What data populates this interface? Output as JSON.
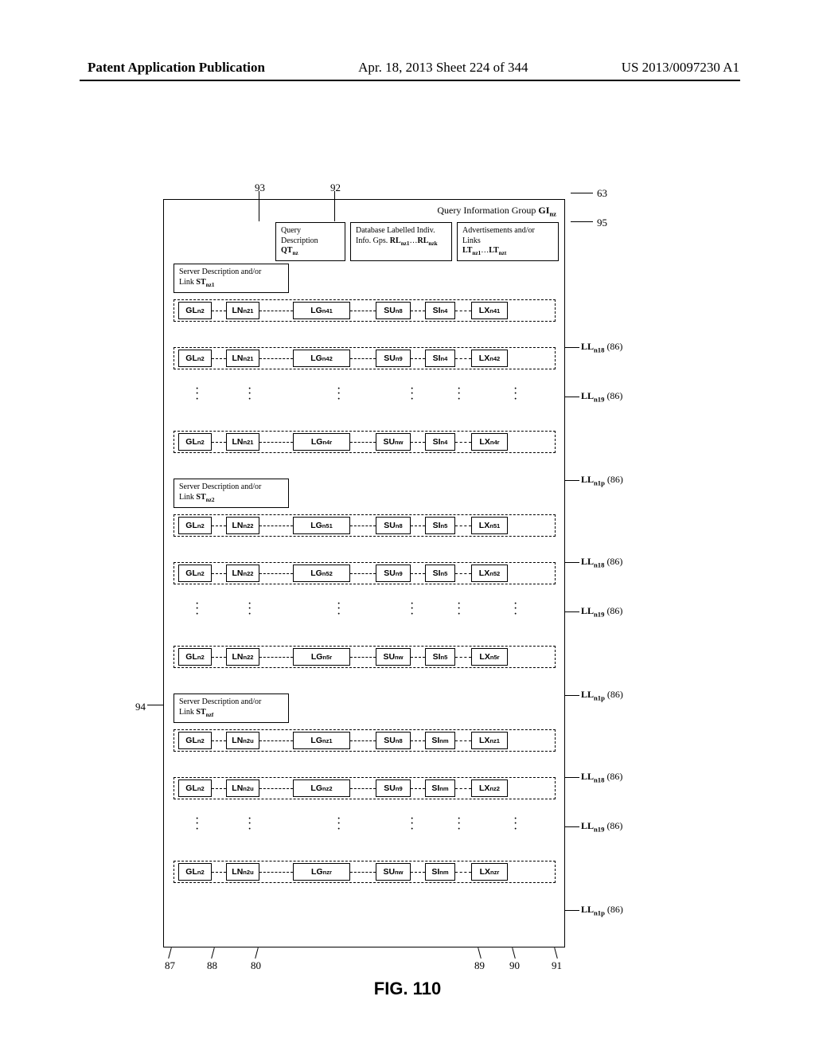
{
  "header": {
    "left": "Patent Application Publication",
    "center": "Apr. 18, 2013  Sheet 224 of 344",
    "right": "US 2013/0097230 A1"
  },
  "figure_caption": "FIG. 110",
  "callouts": {
    "c93": "93",
    "c92": "92",
    "c63": "63",
    "c95": "95",
    "c94": "94",
    "c87": "87",
    "c88": "88",
    "c80": "80",
    "c89": "89",
    "c90": "90",
    "c91": "91"
  },
  "qig_label_prefix": "Query Information Group ",
  "qig_label_bold": "GI",
  "qig_label_sub": "nz",
  "top_boxes": {
    "b1_line1": "Query Description",
    "b1_bold": "QT",
    "b1_sub": "nz",
    "b2_line1": "Database Labelled Indiv.",
    "b2_line2a": "Info. Gps. ",
    "b2_bold1": "RL",
    "b2_sub1": "nz1",
    "b2_mid": "…",
    "b2_bold2": "RL",
    "b2_sub2": "nzk",
    "b3_line1": "Advertisements and/or Links",
    "b3_bold1": "LT",
    "b3_sub1": "nz1",
    "b3_mid": "…",
    "b3_bold2": "LT",
    "b3_sub2": "nzt"
  },
  "server_prefix": "Server Description and/or",
  "server_link": "Link ",
  "server_bold": "ST",
  "sections": [
    {
      "server_sub": "nz1",
      "rows": [
        {
          "gl": "n2",
          "ln": "n21",
          "lg": "n41",
          "su": "n8",
          "si": "n4",
          "lx": "n41"
        },
        {
          "gl": "n2",
          "ln": "n21",
          "lg": "n42",
          "su": "n9",
          "si": "n4",
          "lx": "n42"
        },
        "dots",
        {
          "gl": "n2",
          "ln": "n21",
          "lg": "n4r",
          "su": "nw",
          "si": "n4",
          "lx": "n4r"
        }
      ]
    },
    {
      "server_sub": "nz2",
      "rows": [
        {
          "gl": "n2",
          "ln": "n22",
          "lg": "n51",
          "su": "n8",
          "si": "n5",
          "lx": "n51"
        },
        {
          "gl": "n2",
          "ln": "n22",
          "lg": "n52",
          "su": "n9",
          "si": "n5",
          "lx": "n52"
        },
        "dots",
        {
          "gl": "n2",
          "ln": "n22",
          "lg": "n5r",
          "su": "nw",
          "si": "n5",
          "lx": "n5r"
        }
      ]
    },
    {
      "server_sub": "nzf",
      "rows": [
        {
          "gl": "n2",
          "ln": "n2u",
          "lg": "nz1",
          "su": "n8",
          "si": "nm",
          "lx": "nz1"
        },
        {
          "gl": "n2",
          "ln": "n2u",
          "lg": "nz2",
          "su": "n9",
          "si": "nm",
          "lx": "nz2"
        },
        "dots",
        {
          "gl": "n2",
          "ln": "n2u",
          "lg": "nzr",
          "su": "nw",
          "si": "nm",
          "lx": "nzr"
        }
      ]
    }
  ],
  "cell_labels": {
    "gl": "GL",
    "ln": "LN",
    "lg": "LG",
    "su": "SU",
    "si": "SI",
    "lx": "LX"
  },
  "side_labels": {
    "ll18_pre": "LL",
    "ll18_sub": "n18",
    "ll18_suf": " (86)",
    "ll19_pre": "LL",
    "ll19_sub": "n19",
    "ll19_suf": " (86)",
    "ll1p_pre": "LL",
    "ll1p_sub": "n1p",
    "ll1p_suf": " (86)"
  },
  "layout": {
    "section_tops": [
      80,
      350,
      620
    ],
    "row_offsets": [
      45,
      105,
      155,
      210
    ],
    "server_box_height": 34,
    "dot_cols_x": [
      27,
      93,
      205,
      297,
      356,
      427
    ]
  },
  "colors": {
    "line": "#000000",
    "bg": "#ffffff"
  }
}
